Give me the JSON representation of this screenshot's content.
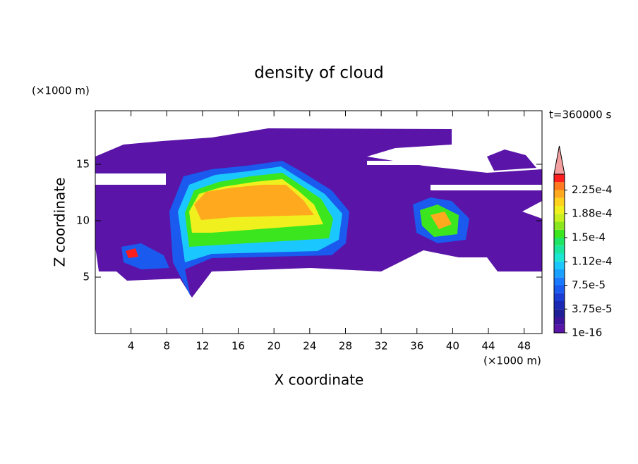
{
  "chart_data": {
    "type": "contour",
    "title": "density of cloud",
    "x_label": "X coordinate",
    "y_label": "Z coordinate",
    "x_unit": "(×1000 m)",
    "y_unit": "(×1000 m)",
    "annotation": "t=360000 s",
    "xlim": [
      0,
      50
    ],
    "xticks": [
      4,
      8,
      12,
      16,
      20,
      24,
      28,
      32,
      36,
      40,
      44,
      48
    ],
    "ylim": [
      0,
      19.75
    ],
    "yticks": [
      5,
      10,
      15
    ],
    "colorbar": {
      "clim": [
        1e-16,
        0.00025
      ],
      "ticks": [
        1e-16,
        {
          "value": 3.75e-05,
          "label": "3.75e-5"
        },
        {
          "value": 7.5e-05,
          "label": "7.5e-5"
        },
        {
          "value": 0.000112,
          "label": "1.12e-4"
        },
        {
          "value": 0.00015,
          "label": "1.5e-4"
        },
        {
          "value": 0.000188,
          "label": "1.88e-4"
        },
        {
          "value": 0.000225,
          "label": "2.25e-4"
        }
      ],
      "colors": [
        "#5a14a8",
        "#3c149c",
        "#1e1e96",
        "#1a28b4",
        "#1a3cd2",
        "#1a5aee",
        "#1a7aff",
        "#1aa0ff",
        "#1ac8ff",
        "#1ae6d2",
        "#1ae6a0",
        "#1ee664",
        "#3ce61e",
        "#8ce61e",
        "#c8f01e",
        "#f0f01e",
        "#ffd21e",
        "#ffaa1e",
        "#ff7a1e",
        "#ff1e1e"
      ],
      "extend_color": "#f4a0a0"
    }
  }
}
